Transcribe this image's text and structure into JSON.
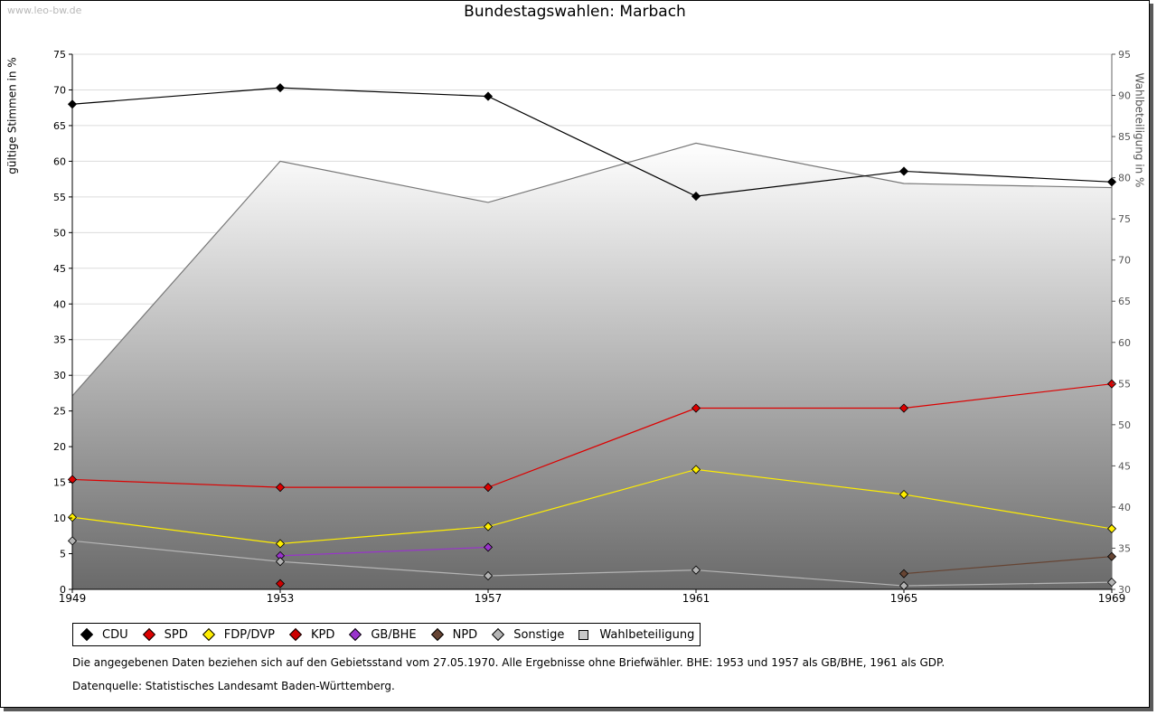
{
  "watermark": "www.leo-bw.de",
  "chart_data": {
    "type": "line",
    "title": "Bundestagswahlen: Marbach",
    "ylabel": "gültige Stimmen in %",
    "y2label": "Wahlbeteiligung in %",
    "categories": [
      "1949",
      "1953",
      "1957",
      "1961",
      "1965",
      "1969"
    ],
    "ylim": [
      0,
      75
    ],
    "y2lim": [
      30,
      95
    ],
    "yticks": [
      0,
      5,
      10,
      15,
      20,
      25,
      30,
      35,
      40,
      45,
      50,
      55,
      60,
      65,
      70,
      75
    ],
    "y2ticks": [
      30,
      35,
      40,
      45,
      50,
      55,
      60,
      65,
      70,
      75,
      80,
      85,
      90,
      95
    ],
    "grid": true,
    "series": [
      {
        "name": "CDU",
        "color": "#000000",
        "values": [
          68.0,
          70.3,
          69.1,
          55.1,
          58.6,
          57.1
        ]
      },
      {
        "name": "SPD",
        "color": "#dd0000",
        "values": [
          15.4,
          14.3,
          14.3,
          25.4,
          25.4,
          28.8
        ]
      },
      {
        "name": "FDP/DVP",
        "color": "#ffee00",
        "values": [
          10.1,
          6.4,
          8.8,
          16.8,
          13.3,
          8.5
        ]
      },
      {
        "name": "KPD",
        "color": "#cc0000",
        "values": [
          null,
          0.8,
          null,
          null,
          null,
          null
        ]
      },
      {
        "name": "GB/BHE",
        "color": "#9933cc",
        "values": [
          null,
          4.7,
          5.9,
          null,
          null,
          null
        ]
      },
      {
        "name": "NPD",
        "color": "#664433",
        "values": [
          null,
          null,
          null,
          null,
          2.2,
          4.6
        ]
      },
      {
        "name": "Sonstige",
        "color": "#b4b4b4",
        "values": [
          6.8,
          3.9,
          1.9,
          2.7,
          0.5,
          1.0
        ]
      }
    ],
    "turnout": {
      "name": "Wahlbeteiligung",
      "axis": "right",
      "values": [
        53.5,
        82.0,
        77.0,
        84.2,
        79.3,
        78.8
      ]
    }
  },
  "legend": [
    {
      "label": "CDU",
      "color": "#000000"
    },
    {
      "label": "SPD",
      "color": "#dd0000"
    },
    {
      "label": "FDP/DVP",
      "color": "#ffee00"
    },
    {
      "label": "KPD",
      "color": "#cc0000"
    },
    {
      "label": "GB/BHE",
      "color": "#9933cc"
    },
    {
      "label": "NPD",
      "color": "#664433"
    },
    {
      "label": "Sonstige",
      "color": "#b4b4b4"
    },
    {
      "label": "Wahlbeteiligung",
      "color": "#c8c8c8"
    }
  ],
  "notes": {
    "line1": "Die angegebenen Daten beziehen sich auf den Gebietsstand vom 27.05.1970. Alle Ergebnisse ohne Briefwähler. BHE: 1953 und 1957 als GB/BHE, 1961 als GDP.",
    "line2": "Datenquelle: Statistisches Landesamt Baden-Württemberg."
  }
}
